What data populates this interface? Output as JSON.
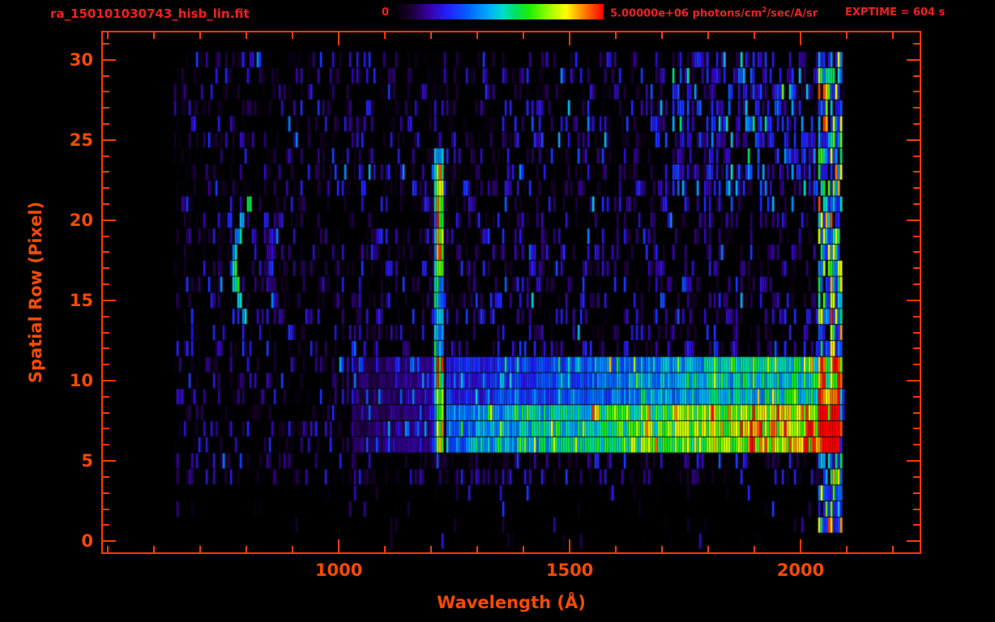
{
  "header": {
    "filename": "ra_150101030743_hisb_lin.fit",
    "colorbar": {
      "min_label": "0",
      "max_label_pre": "5.00000e+06 photons/cm",
      "max_label_sup": "2",
      "max_label_post": "/sec/A/sr"
    },
    "exptime": "EXPTIME = 604 s"
  },
  "colors": {
    "background": "#000000",
    "axis": "#f63c00",
    "axis_text": "#f64a00",
    "header_text": "#f02020"
  },
  "chart_data": {
    "type": "heatmap",
    "title": "ra_150101030743_hisb_lin.fit",
    "xlabel": "Wavelength (Å)",
    "ylabel": "Spatial Row (Pixel)",
    "x_range": [
      489,
      2258
    ],
    "y_range": [
      -0.7,
      31.7
    ],
    "x_ticks": [
      1000,
      1500,
      2000
    ],
    "x_minor_step": 100,
    "y_ticks": [
      0,
      5,
      10,
      15,
      20,
      25,
      30
    ],
    "y_minor_step": 1,
    "colorbar": {
      "min": 0,
      "max": 5000000,
      "units": "photons/cm²/sec/A/sr"
    },
    "exposure_time_s": 604,
    "colormap_stops": [
      [
        0.0,
        "#000000"
      ],
      [
        0.08,
        "#1a0030"
      ],
      [
        0.17,
        "#3800a8"
      ],
      [
        0.26,
        "#2222ff"
      ],
      [
        0.36,
        "#0066ff"
      ],
      [
        0.45,
        "#00aaff"
      ],
      [
        0.52,
        "#00ddcc"
      ],
      [
        0.58,
        "#00e060"
      ],
      [
        0.65,
        "#22ee00"
      ],
      [
        0.74,
        "#99ff00"
      ],
      [
        0.82,
        "#ffff00"
      ],
      [
        0.9,
        "#ff8800"
      ],
      [
        1.0,
        "#ff0000"
      ]
    ],
    "data_extent": {
      "lambda_min": 643,
      "lambda_max": 2092,
      "row_min": 0,
      "row_max": 30,
      "sparse_below_row": 4
    },
    "noise": {
      "seed": 1234567,
      "coverage": 0.88,
      "sparse_coverage": 0.1,
      "amplitude": 0.3,
      "exponent": 6,
      "bright_speck_prob": 0.005
    },
    "features": [
      {
        "name": "lyman-alpha-halo",
        "type": "vline",
        "lambda": 1216,
        "width": 36,
        "row_min": 4.6,
        "row_max": 24.3,
        "intensity": 0.05
      },
      {
        "name": "lyman-alpha-line",
        "type": "vline",
        "lambda": 1216,
        "width": 20,
        "row_min": 5.4,
        "row_max": 24.0,
        "intensity": 0.4
      },
      {
        "name": "lyman-alpha-core-upper",
        "type": "vline",
        "lambda": 1216,
        "width": 13,
        "row_min": 17.0,
        "row_max": 23.6,
        "intensity": 0.24
      },
      {
        "name": "lyman-alpha-core-lower",
        "type": "vline",
        "lambda": 1216,
        "width": 13,
        "row_min": 5.8,
        "row_max": 11.0,
        "intensity": 0.22
      },
      {
        "name": "continuum-band-bright",
        "type": "hband",
        "row_min": 5.5,
        "row_max": 8.3,
        "lambda_min": 1232,
        "lambda_max": 2085,
        "intensity_start": 0.34,
        "intensity_end": 0.88
      },
      {
        "name": "continuum-band-upper",
        "type": "hband",
        "row_min": 8.3,
        "row_max": 11.2,
        "lambda_min": 1232,
        "lambda_max": 2085,
        "intensity_start": 0.22,
        "intensity_end": 0.55
      },
      {
        "name": "pre-lya-band",
        "type": "hband",
        "row_min": 5.5,
        "row_max": 11.0,
        "lambda_min": 1035,
        "lambda_max": 1206,
        "intensity_start": 0.1,
        "intensity_end": 0.16
      },
      {
        "name": "airglow-arc-bright",
        "type": "arc",
        "lambda": 772,
        "curve": 32,
        "row_center": 17.2,
        "row_half": 3.9,
        "width": 13,
        "intensity": 0.5
      },
      {
        "name": "airglow-arc-faint",
        "type": "arc",
        "lambda": 850,
        "curve": 26,
        "row_center": 17.0,
        "row_half": 3.3,
        "width": 14,
        "intensity": 0.17
      },
      {
        "name": "faint-line-1030",
        "type": "vline",
        "lambda": 1030,
        "width": 12,
        "row_min": 4.5,
        "row_max": 12.0,
        "intensity": 0.12
      },
      {
        "name": "edge-bright-column",
        "type": "vband",
        "lambda_min": 2038,
        "lambda_max": 2090,
        "row_min": 0.5,
        "row_max": 30,
        "base": 0.22,
        "spread": 0.75,
        "coverage": 0.85
      },
      {
        "name": "edge-red-spot",
        "type": "hband",
        "row_min": 5.5,
        "row_max": 7.4,
        "lambda_min": 2052,
        "lambda_max": 2084,
        "intensity_start": 0.55,
        "intensity_end": 0.6
      },
      {
        "name": "midfield-scatter",
        "type": "scatter",
        "lambda_min": 1350,
        "lambda_max": 2038,
        "row_min": 11,
        "row_max": 30,
        "prob": 0.1,
        "add": 0.16
      },
      {
        "name": "topright-scatter",
        "type": "scatter",
        "lambda_min": 1720,
        "lambda_max": 2040,
        "row_min": 22,
        "row_max": 30.5,
        "prob": 0.3,
        "add": 0.22
      }
    ]
  }
}
